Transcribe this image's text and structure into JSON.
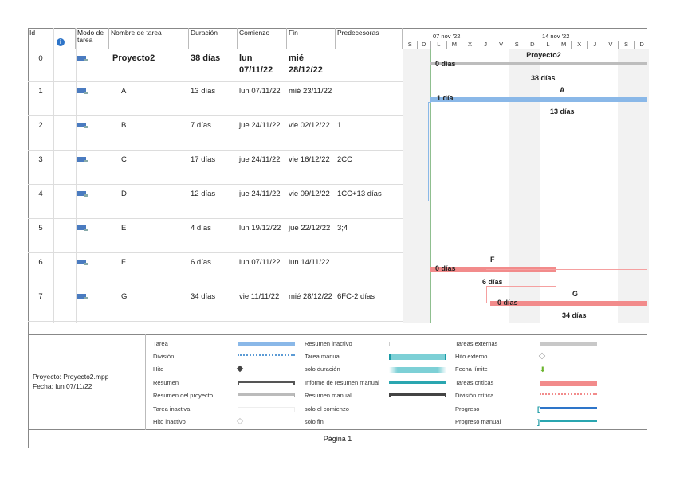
{
  "table": {
    "headers": {
      "id": "Id",
      "info": "i",
      "mode": "Modo de tarea",
      "name": "Nombre de tarea",
      "duration": "Duración",
      "start": "Comienzo",
      "finish": "Fin",
      "pred": "Predecesoras"
    },
    "rows": [
      {
        "id": "0",
        "name": "Proyecto2",
        "duration": "38 días",
        "start": "lun 07/11/22",
        "finish": "mié 28/12/22",
        "pred": ""
      },
      {
        "id": "1",
        "name": "A",
        "duration": "13 días",
        "start": "lun 07/11/22",
        "finish": "mié 23/11/22",
        "pred": ""
      },
      {
        "id": "2",
        "name": "B",
        "duration": "7 días",
        "start": "jue 24/11/22",
        "finish": "vie 02/12/22",
        "pred": "1"
      },
      {
        "id": "3",
        "name": "C",
        "duration": "17 días",
        "start": "jue 24/11/22",
        "finish": "vie 16/12/22",
        "pred": "2CC"
      },
      {
        "id": "4",
        "name": "D",
        "duration": "12 días",
        "start": "jue 24/11/22",
        "finish": "vie 09/12/22",
        "pred": "1CC+13 días"
      },
      {
        "id": "5",
        "name": "E",
        "duration": "4 días",
        "start": "lun 19/12/22",
        "finish": "jue 22/12/22",
        "pred": "3;4"
      },
      {
        "id": "6",
        "name": "F",
        "duration": "6 días",
        "start": "lun 07/11/22",
        "finish": "lun 14/11/22",
        "pred": ""
      },
      {
        "id": "7",
        "name": "G",
        "duration": "34 días",
        "start": "vie 11/11/22",
        "finish": "mié 28/12/22",
        "pred": "6FC-2 días"
      }
    ]
  },
  "gantt": {
    "weeks": [
      "07 nov '22",
      "14 nov '22"
    ],
    "days": [
      "S",
      "D",
      "L",
      "M",
      "X",
      "J",
      "V",
      "S",
      "D",
      "L",
      "M",
      "X",
      "J",
      "V",
      "S",
      "D"
    ],
    "labels": {
      "p_name": "Proyecto2",
      "p_slack": "0 días",
      "p_dur": "38 días",
      "a_name": "A",
      "a_slack": "1 día",
      "a_dur": "13 días",
      "f_name": "F",
      "f_slack": "0 días",
      "f_dur": "6 días",
      "g_name": "G",
      "g_slack": "0 días",
      "g_dur": "34 días"
    },
    "colors": {
      "task": "#8ab8e8",
      "critical": "#f28b8b",
      "summary": "#bdbdbd"
    }
  },
  "footer": {
    "project": "Proyecto: Proyecto2.mpp",
    "date": "Fecha: lun 07/11/22",
    "page": "Página 1"
  },
  "legend": [
    "Tarea",
    "División",
    "Hito",
    "Resumen",
    "Resumen del proyecto",
    "Tarea inactiva",
    "Hito inactivo",
    "Resumen inactivo",
    "Tarea manual",
    "solo duración",
    "Informe de resumen manual",
    "Resumen manual",
    "solo el comienzo",
    "solo fin",
    "Tareas externas",
    "Hito externo",
    "Fecha límite",
    "Tareas críticas",
    "División crítica",
    "Progreso",
    "Progreso manual"
  ]
}
